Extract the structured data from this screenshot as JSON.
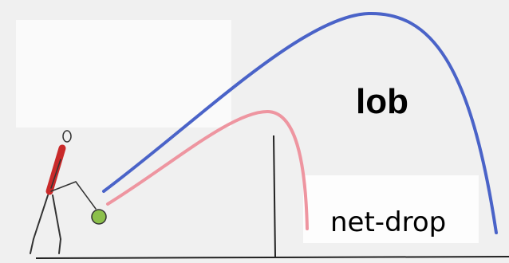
{
  "shots": [
    {
      "label": "lob"
    },
    {
      "label": "net-drop"
    }
  ]
}
